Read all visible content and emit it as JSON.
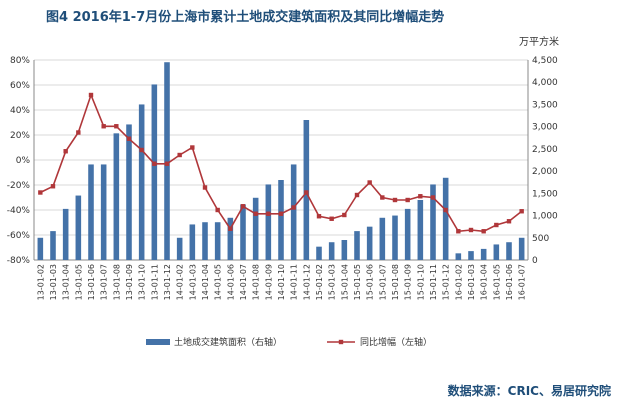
{
  "title": "图4  2016年1-7月份上海市累计土地成交建筑面积及其同比增幅走势",
  "unit_label": "万平方米",
  "source": "数据来源：CRIC、易居研究院",
  "colors": {
    "bar": "#4472a8",
    "line": "#b0373a",
    "title": "#1f4e79"
  },
  "chart_data": {
    "type": "bar",
    "title": "图4  2016年1-7月份上海市累计土地成交建筑面积及其同比增幅走势",
    "categories": [
      "13-01-02",
      "13-01-03",
      "13-01-04",
      "13-01-05",
      "13-01-06",
      "13-01-07",
      "13-01-08",
      "13-01-09",
      "13-01-10",
      "13-01-11",
      "13-01-12",
      "14-01-02",
      "14-01-03",
      "14-01-04",
      "14-01-05",
      "14-01-06",
      "14-01-07",
      "14-01-08",
      "14-01-09",
      "14-01-10",
      "14-01-11",
      "14-01-12",
      "15-01-02",
      "15-01-03",
      "15-01-04",
      "15-01-05",
      "15-01-06",
      "15-01-07",
      "15-01-08",
      "15-01-09",
      "15-01-10",
      "15-01-11",
      "15-01-12",
      "16-01-02",
      "16-01-03",
      "16-01-04",
      "16-01-05",
      "16-01-06",
      "16-01-07"
    ],
    "series": [
      {
        "name": "土地成交建筑面积（右轴）",
        "type": "bar",
        "axis": "right",
        "values": [
          500,
          650,
          1150,
          1450,
          2150,
          2150,
          2850,
          3050,
          3500,
          3950,
          4450,
          500,
          800,
          850,
          850,
          950,
          1250,
          1400,
          1700,
          1800,
          2150,
          3150,
          300,
          400,
          450,
          650,
          750,
          950,
          1000,
          1150,
          1350,
          1700,
          1850,
          150,
          200,
          250,
          350,
          400,
          500
        ]
      },
      {
        "name": "同比增幅（左轴）",
        "type": "line",
        "axis": "left",
        "values": [
          -26,
          -21,
          7,
          22,
          52,
          27,
          27,
          17,
          8,
          -3,
          -3,
          4,
          10,
          -22,
          -40,
          -55,
          -37,
          -43,
          -43,
          -43,
          -38,
          -26,
          -45,
          -47,
          -44,
          -28,
          -18,
          -30,
          -32,
          -32,
          -29,
          -30,
          -40,
          -57,
          -56,
          -57,
          -52,
          -49,
          -41
        ]
      }
    ],
    "y_left": {
      "min": -80,
      "max": 80,
      "step": 20,
      "tick_suffix": "%"
    },
    "y_right": {
      "min": 0,
      "max": 4500,
      "step": 500
    },
    "legend": {
      "position": "bottom"
    }
  }
}
